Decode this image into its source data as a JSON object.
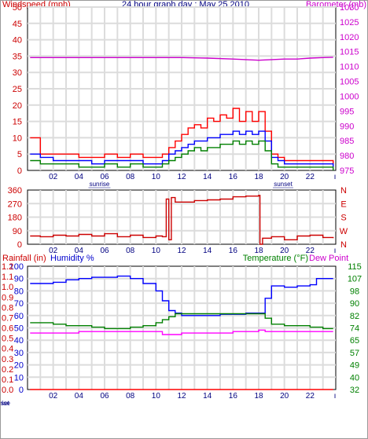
{
  "chart_data": [
    {
      "type": "line",
      "title": "24 hour graph day : May 25 2010",
      "left_label": "Windspeed (mph)",
      "right_label": "Barometer (mb)",
      "x_ticks": [
        "02",
        "04",
        "06",
        "08",
        "10",
        "12",
        "14",
        "16",
        "18",
        "20",
        "22"
      ],
      "x_marks": {
        "sunrise": "sunrise",
        "sunset": "sunset"
      },
      "sunrise_hour": 5.6,
      "sunset_hour": 19.9,
      "y_left_ticks": [
        "0",
        "5",
        "10",
        "15",
        "20",
        "25",
        "30",
        "35",
        "40",
        "45",
        "50"
      ],
      "y_left_range": [
        0,
        50
      ],
      "y_right_ticks": [
        "975",
        "980",
        "985",
        "990",
        "995",
        "1000",
        "1005",
        "1010",
        "1015",
        "1020",
        "1025",
        "1030"
      ],
      "y_right_range": [
        975,
        1030
      ],
      "grid": true,
      "colors": {
        "left_axis": "#cc0000",
        "right_axis": "#cc00cc",
        "grid": "#d8d8d8"
      },
      "series": [
        {
          "color": "#ff0000",
          "axis": "left",
          "x": [
            0.2,
            1,
            2,
            3,
            4,
            5,
            6,
            7,
            8,
            9,
            10,
            10.5,
            11,
            11.5,
            12,
            12.5,
            13,
            13.5,
            14,
            14.5,
            15,
            15.5,
            16,
            16.5,
            17,
            17.5,
            18,
            18.5,
            19,
            19.5,
            20,
            21,
            22,
            23,
            23.8
          ],
          "values": [
            10,
            5,
            5,
            5,
            4,
            4,
            5,
            4,
            5,
            4,
            4,
            5,
            7,
            9,
            11,
            13,
            14,
            13,
            16,
            15,
            17,
            16,
            19,
            15,
            18,
            15,
            18,
            12,
            5,
            4,
            3,
            3,
            3,
            3,
            2
          ]
        },
        {
          "color": "#0000ff",
          "axis": "left",
          "x": [
            0.2,
            1,
            2,
            3,
            4,
            5,
            6,
            7,
            8,
            9,
            10,
            10.5,
            11,
            11.5,
            12,
            12.5,
            13,
            13.5,
            14,
            14.5,
            15,
            15.5,
            16,
            16.5,
            17,
            17.5,
            18,
            18.5,
            19,
            19.5,
            20,
            21,
            22,
            23,
            23.8
          ],
          "values": [
            5,
            4,
            3,
            3,
            3,
            2,
            3,
            3,
            3,
            2,
            2,
            3,
            5,
            6,
            7,
            8,
            9,
            9,
            10,
            10,
            11,
            11,
            12,
            11,
            12,
            11,
            12,
            9,
            4,
            3,
            2,
            2,
            2,
            2,
            1
          ]
        },
        {
          "color": "#008000",
          "axis": "left",
          "x": [
            0.2,
            1,
            2,
            3,
            4,
            5,
            6,
            7,
            8,
            9,
            10,
            10.5,
            11,
            11.5,
            12,
            12.5,
            13,
            13.5,
            14,
            14.5,
            15,
            15.5,
            16,
            16.5,
            17,
            17.5,
            18,
            18.5,
            19,
            19.5,
            20,
            21,
            22,
            23,
            23.8
          ],
          "values": [
            3,
            2,
            2,
            2,
            1,
            1,
            2,
            1,
            2,
            1,
            1,
            2,
            3,
            4,
            5,
            6,
            7,
            6,
            7,
            7,
            8,
            8,
            9,
            8,
            9,
            8,
            9,
            6,
            2,
            1,
            1,
            1,
            1,
            1,
            0
          ]
        },
        {
          "color": "#cc00cc",
          "axis": "right",
          "x": [
            0.2,
            2,
            4,
            6,
            8,
            10,
            12,
            14,
            16,
            17,
            18,
            19,
            20,
            21,
            22,
            23,
            23.8
          ],
          "values": [
            1013,
            1013,
            1013,
            1013,
            1013,
            1013,
            1013,
            1012.8,
            1012.5,
            1012.3,
            1012.1,
            1012.3,
            1012.5,
            1012.5,
            1012.8,
            1013,
            1013.1
          ]
        }
      ]
    },
    {
      "type": "line",
      "x_ticks": [
        "02",
        "04",
        "06",
        "08",
        "10",
        "12",
        "14",
        "16",
        "18",
        "20",
        "22"
      ],
      "y_left_ticks": [
        "0",
        "90",
        "180",
        "270",
        "360"
      ],
      "y_left_range": [
        0,
        360
      ],
      "y_right_ticks": [
        "N",
        "W",
        "S",
        "E",
        "N"
      ],
      "grid": true,
      "colors": {
        "left_axis": "#cc0000",
        "right_axis": "#cc0000"
      },
      "series": [
        {
          "color": "#cc0000",
          "axis": "left",
          "x": [
            0.2,
            1,
            2,
            3,
            4,
            5,
            6,
            7,
            8,
            9,
            10,
            10.5,
            10.8,
            11,
            11.2,
            11.5,
            12,
            13,
            14,
            15,
            16,
            17,
            18,
            18.1,
            18.3,
            19,
            20,
            21,
            22,
            23,
            23.8
          ],
          "values": [
            55,
            50,
            60,
            55,
            65,
            55,
            70,
            50,
            60,
            45,
            55,
            50,
            300,
            30,
            310,
            280,
            280,
            290,
            295,
            300,
            315,
            320,
            325,
            0,
            40,
            50,
            30,
            55,
            60,
            45,
            40
          ]
        }
      ]
    },
    {
      "type": "line",
      "left_label": "Rainfall (in)",
      "left_label2": "Humidity %",
      "right_label": "Temperature (°F)",
      "right_label2": "Dew Point",
      "x_ticks": [
        "02",
        "04",
        "06",
        "08",
        "10",
        "12",
        "14",
        "16",
        "18",
        "20",
        "22"
      ],
      "x_marks": {
        "sunrise": "sunrise",
        "sunset": "sunset"
      },
      "y_humidity_ticks": [
        "0",
        "10",
        "20",
        "30",
        "40",
        "50",
        "60",
        "70",
        "80",
        "90",
        "100"
      ],
      "y_humidity_range": [
        0,
        100
      ],
      "y_rain_ticks": [
        "0.0",
        "0.1",
        "0.2",
        "0.3",
        "0.4",
        "0.5",
        "0.6",
        "0.7",
        "0.8",
        "0.9",
        "1.0",
        "1.1",
        "1.2"
      ],
      "y_rain_range": [
        0,
        1.2
      ],
      "y_right_ticks": [
        "32",
        "40",
        "49",
        "57",
        "65",
        "74",
        "82",
        "90",
        "98",
        "107",
        "115"
      ],
      "y_right_range": [
        32,
        115
      ],
      "grid": true,
      "colors": {
        "humidity_axis": "#0000cc",
        "rain_axis": "#cc0000",
        "right_axis": "#008000"
      },
      "series": [
        {
          "color": "#0000ff",
          "axis": "humidity",
          "x": [
            0.2,
            1,
            2,
            3,
            4,
            5,
            6,
            7,
            8,
            9,
            10,
            10.5,
            11,
            11.5,
            12,
            13,
            14,
            15,
            16,
            17,
            18,
            18.5,
            19,
            20,
            21,
            22,
            22.5,
            23.8
          ],
          "values": [
            86,
            86,
            87,
            89,
            90,
            91,
            91,
            92,
            90,
            86,
            80,
            72,
            64,
            62,
            60,
            60,
            60,
            61,
            61,
            62,
            62,
            74,
            84,
            83,
            84,
            85,
            90,
            90
          ]
        },
        {
          "color": "#008000",
          "axis": "temp",
          "x": [
            0.2,
            1,
            2,
            3,
            4,
            5,
            6,
            7,
            8,
            9,
            10,
            10.5,
            11,
            11.5,
            12,
            13,
            14,
            15,
            16,
            17,
            18,
            18.5,
            19,
            20,
            21,
            22,
            23,
            23.8
          ],
          "values": [
            77,
            77,
            76,
            75,
            75,
            74,
            73,
            73,
            74,
            75,
            77,
            79,
            81,
            83,
            83,
            83,
            83,
            83,
            83,
            83,
            83,
            80,
            76,
            75,
            75,
            74,
            73,
            73
          ]
        },
        {
          "color": "#ff00ff",
          "axis": "temp",
          "x": [
            0.2,
            1,
            2,
            3,
            4,
            5,
            6,
            7,
            8,
            9,
            10,
            10.5,
            11,
            11.5,
            12,
            13,
            14,
            15,
            16,
            17,
            18,
            18.5,
            19,
            20,
            21,
            22,
            23,
            23.8
          ],
          "values": [
            70,
            70,
            70,
            70,
            71,
            71,
            71,
            71,
            71,
            71,
            71,
            69,
            69,
            69,
            70,
            70,
            70,
            70,
            71,
            71,
            72,
            71,
            71,
            71,
            71,
            71,
            71,
            71
          ]
        },
        {
          "color": "#ff0000",
          "axis": "rain",
          "x": [
            0.2,
            23.8
          ],
          "values": [
            0,
            0
          ]
        }
      ]
    }
  ]
}
